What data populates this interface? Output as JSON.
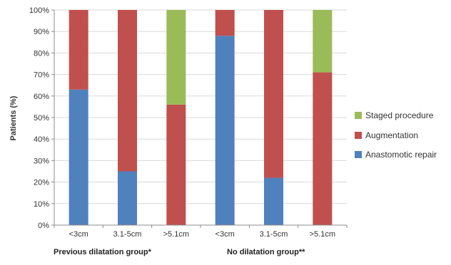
{
  "chart_data": {
    "type": "bar",
    "stacked": true,
    "ylabel": "Patients (%)",
    "ylim": [
      0,
      100
    ],
    "yticks": [
      "0%",
      "10%",
      "20%",
      "30%",
      "40%",
      "50%",
      "60%",
      "70%",
      "80%",
      "90%",
      "100%"
    ],
    "grid": true,
    "legend_position": "right",
    "categories": [
      "<3cm",
      "3.1-5cm",
      ">5.1cm",
      "<3cm",
      "3.1-5cm",
      ">5.1cm"
    ],
    "groups": [
      {
        "label": "Previous dilatation group*",
        "categories": [
          0,
          1,
          2
        ]
      },
      {
        "label": "No dilatation group**",
        "categories": [
          3,
          4,
          5
        ]
      }
    ],
    "series": [
      {
        "name": "Anastomotic repair",
        "color": "#4f81bd",
        "values": [
          63,
          25,
          0,
          88,
          22,
          0
        ]
      },
      {
        "name": "Augmentation",
        "color": "#c0504d",
        "values": [
          37,
          75,
          56,
          12,
          78,
          71
        ]
      },
      {
        "name": "Staged procedure",
        "color": "#9bbb59",
        "values": [
          0,
          0,
          44,
          0,
          0,
          29
        ]
      }
    ],
    "legend_order": [
      "Staged procedure",
      "Augmentation",
      "Anastomotic repair"
    ]
  }
}
